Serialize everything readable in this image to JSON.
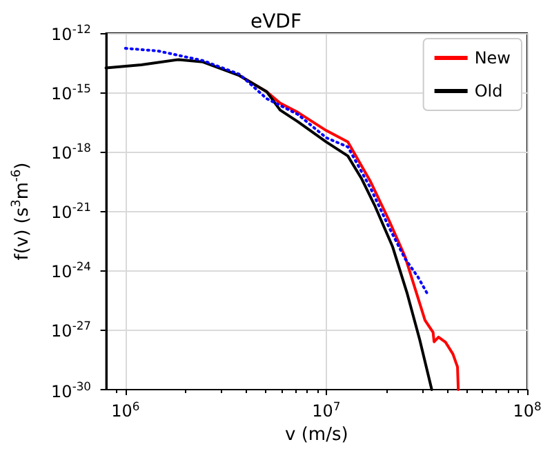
{
  "chart_data": {
    "type": "line",
    "title": "eVDF",
    "xlabel": "v (m/s)",
    "ylabel": "f(v) (s$^{3}$m$^{-6}$)",
    "log": "xy",
    "grid": true,
    "legend": "top right",
    "marker": "none",
    "xlim": [
      800000.0,
      100000000.0
    ],
    "xticks": [
      {
        "value": 1000000.0,
        "label": "10$^{6}$"
      },
      {
        "value": 10000000.0,
        "label": "10$^{7}$"
      },
      {
        "value": 100000000.0,
        "label": "10$^{8}$"
      },
      {
        "value": 900000.0,
        "label": null
      },
      {
        "value": 2000000.0,
        "label": null
      },
      {
        "value": 3000000.0,
        "label": null
      },
      {
        "value": 4000000.0,
        "label": null
      },
      {
        "value": 5000000.0,
        "label": null
      },
      {
        "value": 6000000.0,
        "label": null
      },
      {
        "value": 7000000.0,
        "label": null
      },
      {
        "value": 8000000.0,
        "label": null
      },
      {
        "value": 9000000.0,
        "label": null
      },
      {
        "value": 20000000.0,
        "label": null
      },
      {
        "value": 30000000.0,
        "label": null
      },
      {
        "value": 40000000.0,
        "label": null
      },
      {
        "value": 50000000.0,
        "label": null
      },
      {
        "value": 60000000.0,
        "label": null
      },
      {
        "value": 70000000.0,
        "label": null
      },
      {
        "value": 80000000.0,
        "label": null
      },
      {
        "value": 90000000.0,
        "label": null
      }
    ],
    "ylim": [
      1e-30,
      1e-12
    ],
    "yticks": [
      {
        "value": 1e-30,
        "label": "10$^{-30}$"
      },
      {
        "value": 1e-27,
        "label": "10$^{-27}$"
      },
      {
        "value": 1e-24,
        "label": "10$^{-24}$"
      },
      {
        "value": 1e-21,
        "label": "10$^{-21}$"
      },
      {
        "value": 1e-18,
        "label": "10$^{-18}$"
      },
      {
        "value": 1e-15,
        "label": "10$^{-15}$"
      },
      {
        "value": 1e-12,
        "label": "10$^{-12}$"
      }
    ],
    "series": [
      {
        "name": "New",
        "color": "#ff0000",
        "line_style": "solid",
        "x": [
          3700000.0,
          5050000.0,
          5890000.0,
          7210000.0,
          10000000.0,
          12800000.0,
          16600000.0,
          20500000.0,
          24700000.0,
          31000000.0,
          34000000.0,
          34400000.0,
          36200000.0,
          39200000.0,
          42700000.0,
          45000000.0,
          45400000.0
        ],
        "values": [
          7.1e-15,
          1.1e-15,
          2.9e-16,
          1e-16,
          1.2e-17,
          3.2e-18,
          3.2e-20,
          3.6e-22,
          5e-24,
          3.2e-27,
          7.9e-28,
          2.6e-28,
          4.5e-28,
          2.5e-28,
          6.3e-29,
          1.4e-29,
          1e-30
        ]
      },
      {
        "name": "Old",
        "color": "#000000",
        "line_style": "solid",
        "x": [
          800000.0,
          1200000.0,
          1840000.0,
          2430000.0,
          3700000.0,
          5050000.0,
          5890000.0,
          7210000.0,
          10000000.0,
          12800000.0,
          15000000.0,
          17500000.0,
          21400000.0,
          25200000.0,
          29200000.0,
          33500000.0
        ],
        "values": [
          1.74e-14,
          2.5e-14,
          4.6e-14,
          3.5e-14,
          7.1e-15,
          1.1e-15,
          1.3e-16,
          3.4e-17,
          3.2e-18,
          6.3e-19,
          4.4e-20,
          1.8e-21,
          1.6e-23,
          7.9e-26,
          3.2e-28,
          1e-30
        ]
      },
      {
        "color": "#0000ff",
        "line_style": "dotted",
        "x": [
          1000000.0,
          1450000.0,
          2430000.0,
          3700000.0,
          5050000.0,
          7210000.0,
          10000000.0,
          12800000.0,
          16600000.0,
          20500000.0,
          24700000.0,
          28700000.0,
          31800000.0
        ],
        "values": [
          1.7e-13,
          1.26e-13,
          4.1e-14,
          8.3e-15,
          4.9e-16,
          7.9e-17,
          5.2e-18,
          1.8e-18,
          1.5e-20,
          1.6e-22,
          4e-24,
          4.6e-25,
          7.1e-26
        ]
      }
    ]
  }
}
